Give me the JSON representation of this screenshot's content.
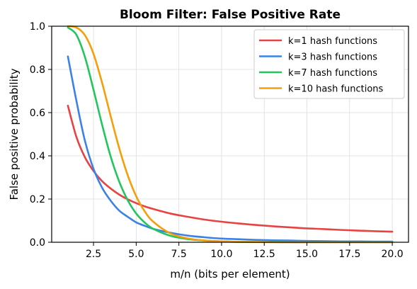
{
  "chart_data": {
    "type": "line",
    "title": "Bloom Filter: False Positive Rate",
    "xlabel": "m/n  (bits per element)",
    "ylabel": "False positive probability",
    "xlim": [
      0.05,
      20.95
    ],
    "ylim": [
      0.0,
      1.0
    ],
    "xticks": [
      2.5,
      5.0,
      7.5,
      10.0,
      12.5,
      15.0,
      17.5,
      20.0
    ],
    "xtick_labels": [
      "2.5",
      "5.0",
      "7.5",
      "10.0",
      "12.5",
      "15.0",
      "17.5",
      "20.0"
    ],
    "yticks": [
      0.0,
      0.2,
      0.4,
      0.6,
      0.8,
      1.0
    ],
    "ytick_labels": [
      "0.0",
      "0.2",
      "0.4",
      "0.6",
      "0.8",
      "1.0"
    ],
    "grid": true,
    "legend_position": "top-right",
    "x": [
      1.0,
      1.5,
      2.0,
      2.5,
      3.0,
      3.5,
      4.0,
      4.5,
      5.0,
      5.5,
      6.0,
      7.0,
      8.0,
      9.0,
      10.0,
      11.0,
      12.0,
      13.0,
      14.0,
      15.0,
      16.0,
      17.0,
      18.0,
      19.0,
      20.0
    ],
    "series": [
      {
        "name": "k=1 hash functions",
        "color": "#e84343",
        "values": [
          0.632,
          0.487,
          0.393,
          0.33,
          0.283,
          0.249,
          0.221,
          0.199,
          0.181,
          0.166,
          0.154,
          0.133,
          0.118,
          0.105,
          0.095,
          0.087,
          0.08,
          0.074,
          0.069,
          0.064,
          0.061,
          0.057,
          0.054,
          0.051,
          0.049
        ]
      },
      {
        "name": "k=3 hash functions",
        "color": "#3b82e8",
        "values": [
          0.86,
          0.654,
          0.469,
          0.34,
          0.253,
          0.193,
          0.147,
          0.118,
          0.092,
          0.076,
          0.062,
          0.044,
          0.031,
          0.023,
          0.017,
          0.014,
          0.011,
          0.009,
          0.008,
          0.006,
          0.005,
          0.004,
          0.004,
          0.003,
          0.003
        ]
      },
      {
        "name": "k=7 hash functions",
        "color": "#22c55e",
        "values": [
          0.994,
          0.96,
          0.857,
          0.706,
          0.545,
          0.398,
          0.282,
          0.195,
          0.133,
          0.091,
          0.062,
          0.03,
          0.015,
          0.008,
          0.004,
          0.002,
          0.001,
          0.001,
          0.0,
          0.0,
          0.0,
          0.0,
          0.0,
          0.0,
          0.0
        ]
      },
      {
        "name": "k=10 hash functions",
        "color": "#f59e0b",
        "values": [
          1.0,
          0.994,
          0.958,
          0.872,
          0.739,
          0.585,
          0.437,
          0.311,
          0.213,
          0.143,
          0.095,
          0.041,
          0.018,
          0.008,
          0.004,
          0.002,
          0.001,
          0.0,
          0.0,
          0.0,
          0.0,
          0.0,
          0.0,
          0.0,
          0.0
        ]
      }
    ]
  }
}
